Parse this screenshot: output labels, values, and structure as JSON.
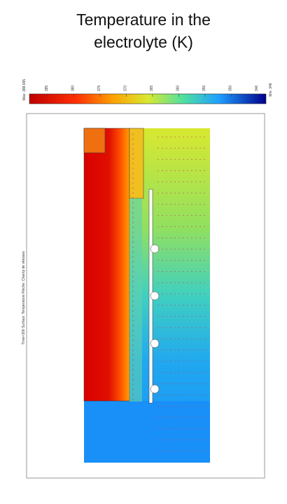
{
  "header": {
    "title_lines": [
      "Temperature in the",
      "electrolyte (K)"
    ]
  },
  "colorbar": {
    "max_label": "Max: 388.695",
    "min_label": "Min: 348",
    "ticks": [
      "385",
      "380",
      "375",
      "370",
      "365",
      "360",
      "355",
      "350",
      "346"
    ]
  },
  "caption": "Time=300   Surface: Temperature   Flèche: Champ de vitesses"
}
